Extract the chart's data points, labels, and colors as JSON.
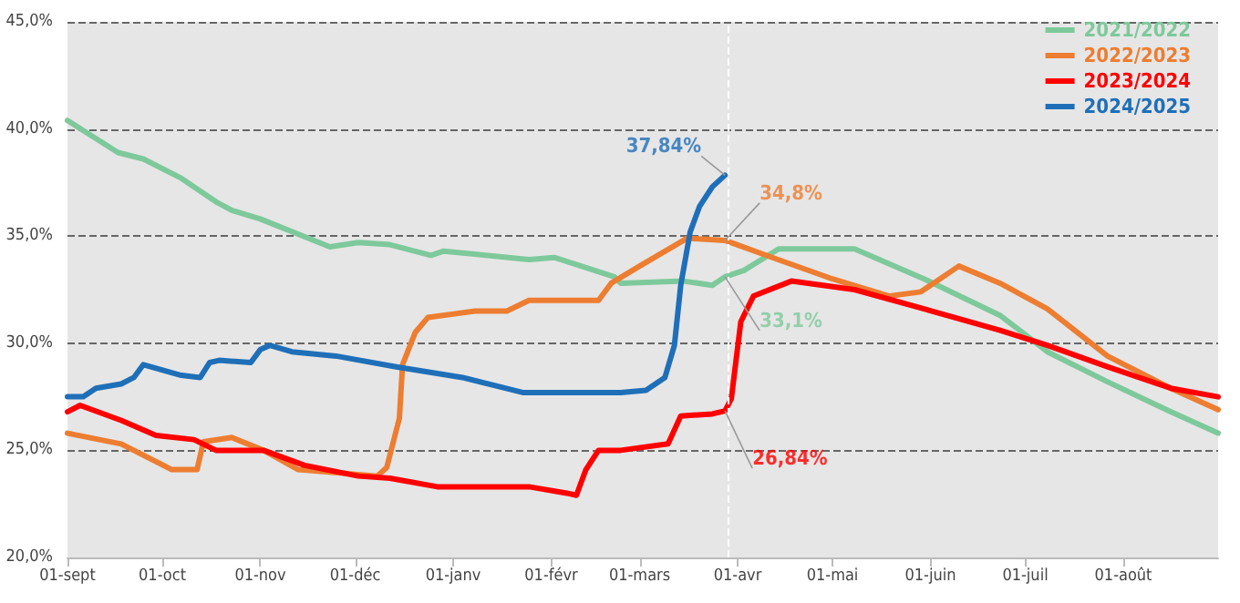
{
  "chart_data": {
    "type": "line",
    "xlim": [
      "2024-09-01",
      "2025-08-31"
    ],
    "xticks": [
      {
        "value": "2024-09-01",
        "label": "01-sept"
      },
      {
        "value": "2024-10-01",
        "label": "01-oct"
      },
      {
        "value": "2024-11-01",
        "label": "01-nov"
      },
      {
        "value": "2024-12-01",
        "label": "01-déc"
      },
      {
        "value": "2025-01-01",
        "label": "01-janv"
      },
      {
        "value": "2025-02-01",
        "label": "01-févr"
      },
      {
        "value": "2025-03-01",
        "label": "01-mars"
      },
      {
        "value": "2025-04-01",
        "label": "01-avr"
      },
      {
        "value": "2025-05-01",
        "label": "01-mai"
      },
      {
        "value": "2025-06-01",
        "label": "01-juin"
      },
      {
        "value": "2025-07-01",
        "label": "01-juil"
      },
      {
        "value": "2025-08-01",
        "label": "01-août"
      }
    ],
    "ylim": [
      20,
      45
    ],
    "yticks": [
      {
        "value": 20,
        "label": "20,0%"
      },
      {
        "value": 25,
        "label": "25,0%"
      },
      {
        "value": 30,
        "label": "30,0%"
      },
      {
        "value": 35,
        "label": "35,0%"
      },
      {
        "value": 40,
        "label": "40,0%"
      },
      {
        "value": 45,
        "label": "45,0%"
      }
    ],
    "grid": "y",
    "legend": "top right",
    "marker": "none",
    "line_style": "solid",
    "series": [
      {
        "name": "2021/2022",
        "color": "#7ec99b",
        "x": [
          "2024-09-01",
          "2024-09-17",
          "2024-09-25",
          "2024-10-07",
          "2024-10-18",
          "2024-10-23",
          "2024-11-01",
          "2024-11-23",
          "2024-12-02",
          "2024-12-12",
          "2024-12-25",
          "2024-12-29",
          "2025-01-25",
          "2025-02-02",
          "2025-02-21",
          "2025-02-23",
          "2025-03-15",
          "2025-03-24",
          "2025-03-28",
          "2025-04-03",
          "2025-04-14",
          "2025-05-08",
          "2025-05-30",
          "2025-06-23",
          "2025-07-08",
          "2025-07-27",
          "2025-08-16",
          "2025-08-31"
        ],
        "values": [
          40.4,
          38.9,
          38.6,
          37.7,
          36.6,
          36.2,
          35.8,
          34.5,
          34.7,
          34.6,
          34.1,
          34.3,
          33.9,
          34.0,
          33.1,
          32.8,
          32.9,
          32.7,
          33.1,
          33.4,
          34.4,
          34.4,
          33.0,
          31.3,
          29.6,
          28.2,
          26.8,
          25.8
        ]
      },
      {
        "name": "2022/2023",
        "color": "#ed7d31",
        "x": [
          "2024-09-01",
          "2024-09-18",
          "2024-10-04",
          "2024-10-12",
          "2024-10-14",
          "2024-10-23",
          "2024-11-02",
          "2024-11-13",
          "2024-12-08",
          "2024-12-11",
          "2024-12-15",
          "2024-12-16",
          "2024-12-20",
          "2024-12-24",
          "2025-01-08",
          "2025-01-18",
          "2025-01-25",
          "2025-02-16",
          "2025-02-20",
          "2025-03-01",
          "2025-03-16",
          "2025-03-28",
          "2025-04-12",
          "2025-05-01",
          "2025-05-19",
          "2025-05-29",
          "2025-06-10",
          "2025-06-23",
          "2025-07-08",
          "2025-07-27",
          "2025-08-16",
          "2025-08-31"
        ],
        "values": [
          25.8,
          25.3,
          24.1,
          24.1,
          25.4,
          25.6,
          25.0,
          24.1,
          23.8,
          24.2,
          26.5,
          29.0,
          30.5,
          31.2,
          31.5,
          31.5,
          32.0,
          32.0,
          32.8,
          33.6,
          34.9,
          34.8,
          34.0,
          33.0,
          32.2,
          32.4,
          33.6,
          32.8,
          31.6,
          29.4,
          27.9,
          26.9
        ]
      },
      {
        "name": "2023/2024",
        "color": "#ff0000",
        "x": [
          "2024-09-01",
          "2024-09-05",
          "2024-09-18",
          "2024-09-29",
          "2024-10-11",
          "2024-10-18",
          "2024-11-02",
          "2024-11-15",
          "2024-12-02",
          "2024-12-12",
          "2024-12-27",
          "2025-01-25",
          "2025-02-06",
          "2025-02-09",
          "2025-02-12",
          "2025-02-16",
          "2025-02-23",
          "2025-03-10",
          "2025-03-14",
          "2025-03-24",
          "2025-03-28",
          "2025-03-30",
          "2025-04-02",
          "2025-04-06",
          "2025-04-18",
          "2025-05-08",
          "2025-05-30",
          "2025-06-23",
          "2025-07-08",
          "2025-07-27",
          "2025-08-16",
          "2025-08-31"
        ],
        "values": [
          26.8,
          27.1,
          26.4,
          25.7,
          25.5,
          25.0,
          25.0,
          24.3,
          23.8,
          23.7,
          23.3,
          23.3,
          23.0,
          22.9,
          24.1,
          25.0,
          25.0,
          25.3,
          26.6,
          26.7,
          26.84,
          27.4,
          31.0,
          32.2,
          32.9,
          32.5,
          31.6,
          30.6,
          29.9,
          28.9,
          27.9,
          27.5
        ]
      },
      {
        "name": "2024/2025",
        "color": "#1f6fb8",
        "x": [
          "2024-09-01",
          "2024-09-06",
          "2024-09-10",
          "2024-09-18",
          "2024-09-22",
          "2024-09-25",
          "2024-10-07",
          "2024-10-13",
          "2024-10-16",
          "2024-10-19",
          "2024-10-29",
          "2024-11-01",
          "2024-11-04",
          "2024-11-11",
          "2024-11-25",
          "2024-12-14",
          "2025-01-04",
          "2025-01-23",
          "2025-02-23",
          "2025-03-03",
          "2025-03-09",
          "2025-03-12",
          "2025-03-14",
          "2025-03-17",
          "2025-03-20",
          "2025-03-24",
          "2025-03-28"
        ],
        "values": [
          27.5,
          27.5,
          27.9,
          28.1,
          28.4,
          29.0,
          28.5,
          28.4,
          29.1,
          29.2,
          29.1,
          29.7,
          29.9,
          29.6,
          29.4,
          28.9,
          28.4,
          27.7,
          27.7,
          27.8,
          28.4,
          29.9,
          32.7,
          35.2,
          36.4,
          37.3,
          37.84
        ]
      }
    ],
    "ref_lines": [
      {
        "axis": "x",
        "value": "2025-03-29",
        "color": "#ffffff",
        "line_style": "dashed"
      }
    ],
    "annotations": [
      {
        "text": "37,84%",
        "x": "2025-03-28",
        "y": 37.84
      },
      {
        "text": "34,8%",
        "x": "2025-03-28",
        "y": 34.8
      },
      {
        "text": "33,1%",
        "x": "2025-03-28",
        "y": 33.1
      },
      {
        "text": "26,84%",
        "x": "2025-03-28",
        "y": 26.84
      }
    ]
  }
}
